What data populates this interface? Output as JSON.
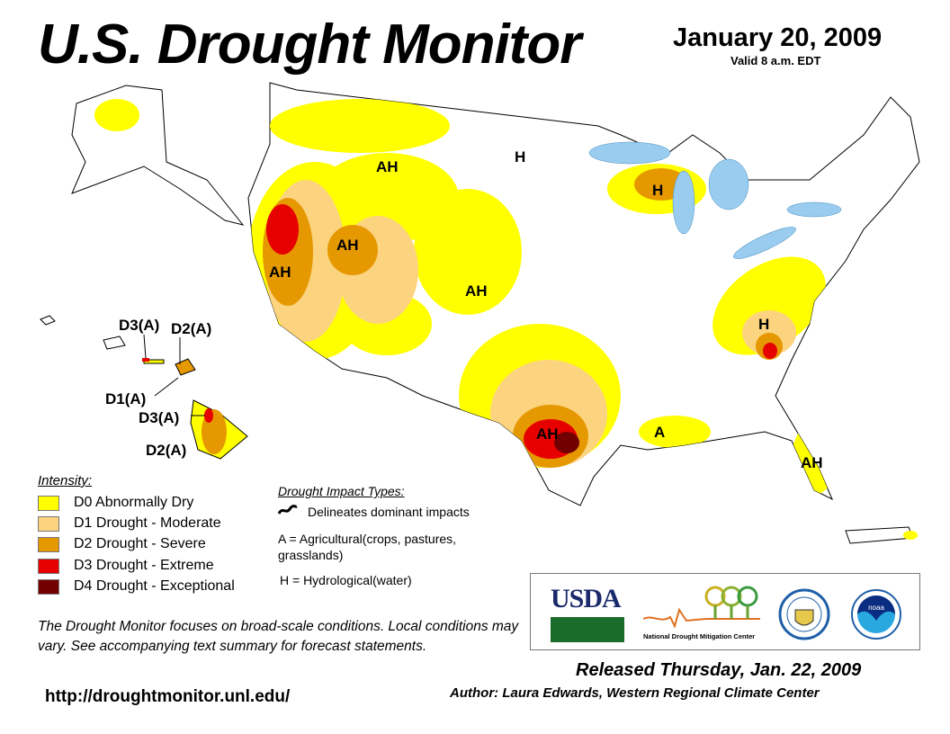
{
  "header": {
    "title": "U.S. Drought Monitor",
    "date": "January 20, 2009",
    "valid": "Valid 8 a.m. EDT"
  },
  "map_labels": {
    "us": [
      "AH",
      "H",
      "H",
      "AH",
      "AH",
      "AH",
      "H",
      "AH",
      "A",
      "AH"
    ],
    "hawaii": [
      "D3(A)",
      "D2(A)",
      "D1(A)",
      "D3(A)",
      "D2(A)"
    ]
  },
  "legend": {
    "title": "Intensity:",
    "items": [
      {
        "label": "D0 Abnormally Dry",
        "color": "#ffff00"
      },
      {
        "label": "D1 Drought - Moderate",
        "color": "#fcd37f"
      },
      {
        "label": "D2 Drought - Severe",
        "color": "#e69800"
      },
      {
        "label": "D3 Drought - Extreme",
        "color": "#e60000"
      },
      {
        "label": "D4 Drought - Exceptional",
        "color": "#730000"
      }
    ]
  },
  "impacts": {
    "title": "Drought Impact Types:",
    "delineates": "Delineates dominant impacts",
    "agricultural": "A = Agricultural(crops, pastures, grasslands)",
    "hydrological": "H = Hydrological(water)"
  },
  "note": "The Drought Monitor focuses on broad-scale conditions. Local conditions may vary. See accompanying text summary for forecast statements.",
  "url": "http://droughtmonitor.unl.edu/",
  "released": "Released Thursday, Jan. 22, 2009",
  "author": "Author: Laura Edwards, Western Regional Climate Center",
  "logos": {
    "usda": "USDA",
    "ndmc": "National Drought Mitigation Center",
    "noaa": "noaa"
  }
}
